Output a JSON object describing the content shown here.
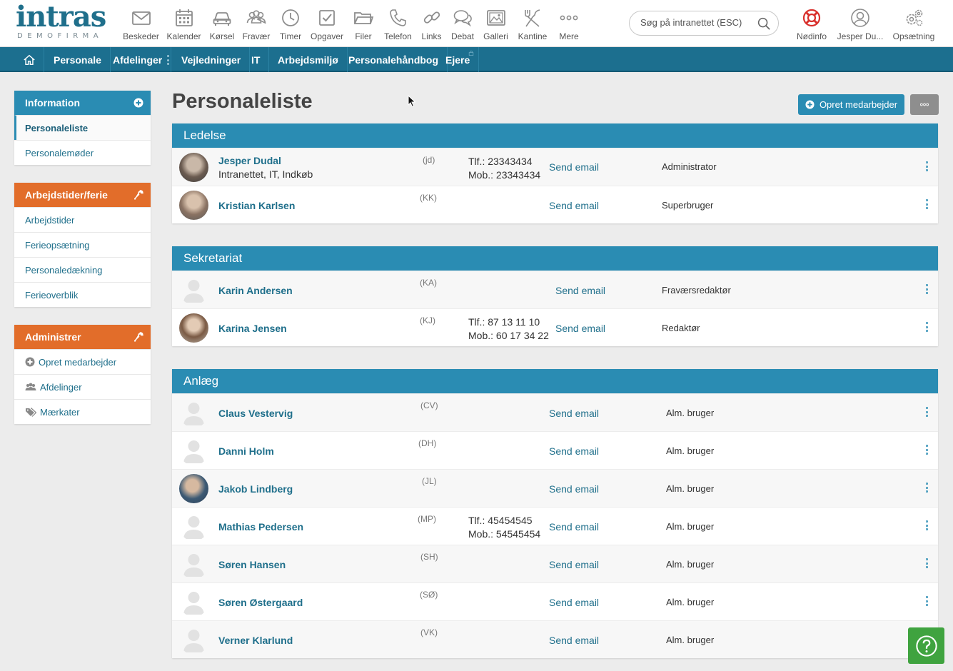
{
  "logo": {
    "main": "intras",
    "sub": "DEMOFIRMA"
  },
  "topnav": [
    {
      "label": "Beskeder",
      "icon": "envelope-icon"
    },
    {
      "label": "Kalender",
      "icon": "calendar-icon"
    },
    {
      "label": "Kørsel",
      "icon": "car-icon"
    },
    {
      "label": "Fravær",
      "icon": "people-icon"
    },
    {
      "label": "Timer",
      "icon": "clock-icon"
    },
    {
      "label": "Opgaver",
      "icon": "checkbox-icon"
    },
    {
      "label": "Filer",
      "icon": "folder-icon"
    },
    {
      "label": "Telefon",
      "icon": "phone-icon"
    },
    {
      "label": "Links",
      "icon": "link-icon"
    },
    {
      "label": "Debat",
      "icon": "chat-icon"
    },
    {
      "label": "Galleri",
      "icon": "image-icon"
    },
    {
      "label": "Kantine",
      "icon": "cutlery-icon"
    },
    {
      "label": "Mere",
      "icon": "more-icon"
    }
  ],
  "search": {
    "placeholder": "Søg på intranettet (ESC)"
  },
  "rightnav": {
    "emergency": "Nødinfo",
    "user": "Jesper Du...",
    "settings": "Opsætning"
  },
  "mainnav": [
    "Personale",
    "Afdelinger",
    "Vejledninger",
    "IT",
    "Arbejdsmiljø",
    "Personalehåndbog",
    "Ejere"
  ],
  "sidebar": {
    "information": {
      "title": "Information",
      "items": [
        "Personaleliste",
        "Personalemøder"
      ]
    },
    "work": {
      "title": "Arbejdstider/ferie",
      "items": [
        "Arbejdstider",
        "Ferieopsætning",
        "Personaledækning",
        "Ferieoverblik"
      ]
    },
    "admin": {
      "title": "Administrer",
      "items": [
        "Opret medarbejder",
        "Afdelinger",
        "Mærkater"
      ]
    }
  },
  "page": {
    "title": "Personaleliste",
    "create_button": "Opret medarbejder"
  },
  "sections": [
    {
      "title": "Ledelse",
      "people": [
        {
          "name": "Jesper Dudal",
          "sub": "Intranettet, IT, Indkøb",
          "initials": "(jd)",
          "phone": "Tlf.: 23343434",
          "mobile": "Mob.: 23343434",
          "email": "Send email",
          "role": "Administrator"
        },
        {
          "name": "Kristian Karlsen",
          "sub": "",
          "initials": "(KK)",
          "phone": "",
          "mobile": "",
          "email": "Send email",
          "role": "Superbruger"
        }
      ]
    },
    {
      "title": "Sekretariat",
      "people": [
        {
          "name": "Karin Andersen",
          "sub": "",
          "initials": "(KA)",
          "phone": "",
          "mobile": "",
          "email": "Send email",
          "role": "Fraværsredaktør"
        },
        {
          "name": "Karina Jensen",
          "sub": "",
          "initials": "(KJ)",
          "phone": "Tlf.: 87 13 11 10",
          "mobile": "Mob.: 60 17 34 22",
          "email": "Send email",
          "role": "Redaktør"
        }
      ]
    },
    {
      "title": "Anlæg",
      "people": [
        {
          "name": "Claus Vestervig",
          "sub": "",
          "initials": "(CV)",
          "phone": "",
          "mobile": "",
          "email": "Send email",
          "role": "Alm. bruger"
        },
        {
          "name": "Danni Holm",
          "sub": "",
          "initials": "(DH)",
          "phone": "",
          "mobile": "",
          "email": "Send email",
          "role": "Alm. bruger"
        },
        {
          "name": "Jakob Lindberg",
          "sub": "",
          "initials": "(JL)",
          "phone": "",
          "mobile": "",
          "email": "Send email",
          "role": "Alm. bruger"
        },
        {
          "name": "Mathias Pedersen",
          "sub": "",
          "initials": "(MP)",
          "phone": "Tlf.: 45454545",
          "mobile": "Mob.: 54545454",
          "email": "Send email",
          "role": "Alm. bruger"
        },
        {
          "name": "Søren Hansen",
          "sub": "",
          "initials": "(SH)",
          "phone": "",
          "mobile": "",
          "email": "Send email",
          "role": "Alm. bruger"
        },
        {
          "name": "Søren Østergaard",
          "sub": "",
          "initials": "(SØ)",
          "phone": "",
          "mobile": "",
          "email": "Send email",
          "role": "Alm. bruger"
        },
        {
          "name": "Verner Klarlund",
          "sub": "",
          "initials": "(VK)",
          "phone": "",
          "mobile": "",
          "email": "Send email",
          "role": "Alm. bruger"
        }
      ]
    }
  ],
  "colors": {
    "brand_blue": "#2a8cb3",
    "nav_blue": "#1c6f8f",
    "orange": "#e26d2a",
    "link": "#1f6f8b",
    "help_green": "#3fa33f",
    "emergency_red": "#d9302c"
  }
}
